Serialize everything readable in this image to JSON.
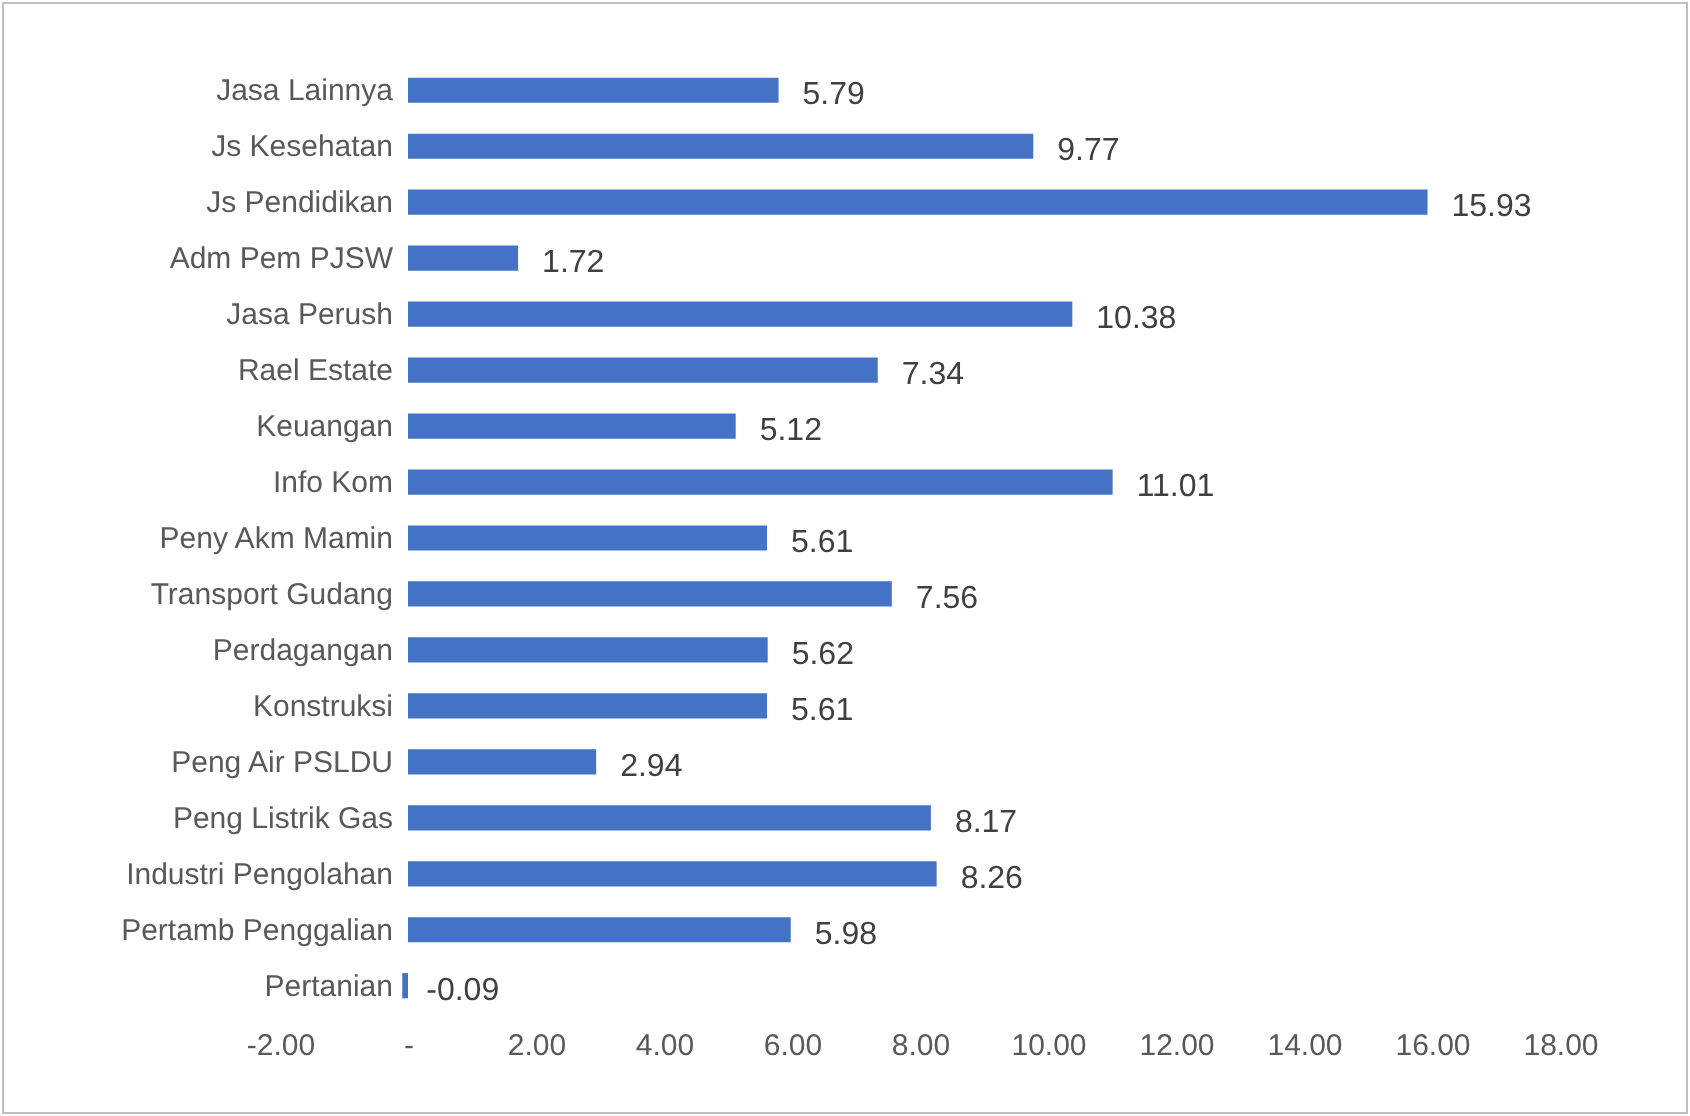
{
  "chart_data": {
    "type": "bar",
    "orientation": "horizontal",
    "categories": [
      "Jasa Lainnya",
      "Js Kesehatan",
      "Js Pendidikan",
      "Adm Pem PJSW",
      "Jasa Perush",
      "Rael Estate",
      "Keuangan",
      "Info Kom",
      "Peny Akm Mamin",
      "Transport Gudang",
      "Perdagangan",
      "Konstruksi",
      "Peng Air PSLDU",
      "Peng Listrik Gas",
      "Industri Pengolahan",
      "Pertamb Penggalian",
      "Pertanian"
    ],
    "values": [
      5.79,
      9.77,
      15.93,
      1.72,
      10.38,
      7.34,
      5.12,
      11.01,
      5.61,
      7.56,
      5.62,
      5.61,
      2.94,
      8.17,
      8.26,
      5.98,
      -0.09
    ],
    "color": "#4472c4",
    "data_labels": true,
    "grid": false,
    "xlim": [
      -2,
      18
    ],
    "xticks": [
      {
        "value": -2,
        "label": "-2.00"
      },
      {
        "value": 0,
        "label": "-"
      },
      {
        "value": 2,
        "label": "2.00"
      },
      {
        "value": 4,
        "label": "4.00"
      },
      {
        "value": 6,
        "label": "6.00"
      },
      {
        "value": 8,
        "label": "8.00"
      },
      {
        "value": 10,
        "label": "10.00"
      },
      {
        "value": 12,
        "label": "12.00"
      },
      {
        "value": 14,
        "label": "14.00"
      },
      {
        "value": 16,
        "label": "16.00"
      },
      {
        "value": 18,
        "label": "18.00"
      }
    ]
  }
}
